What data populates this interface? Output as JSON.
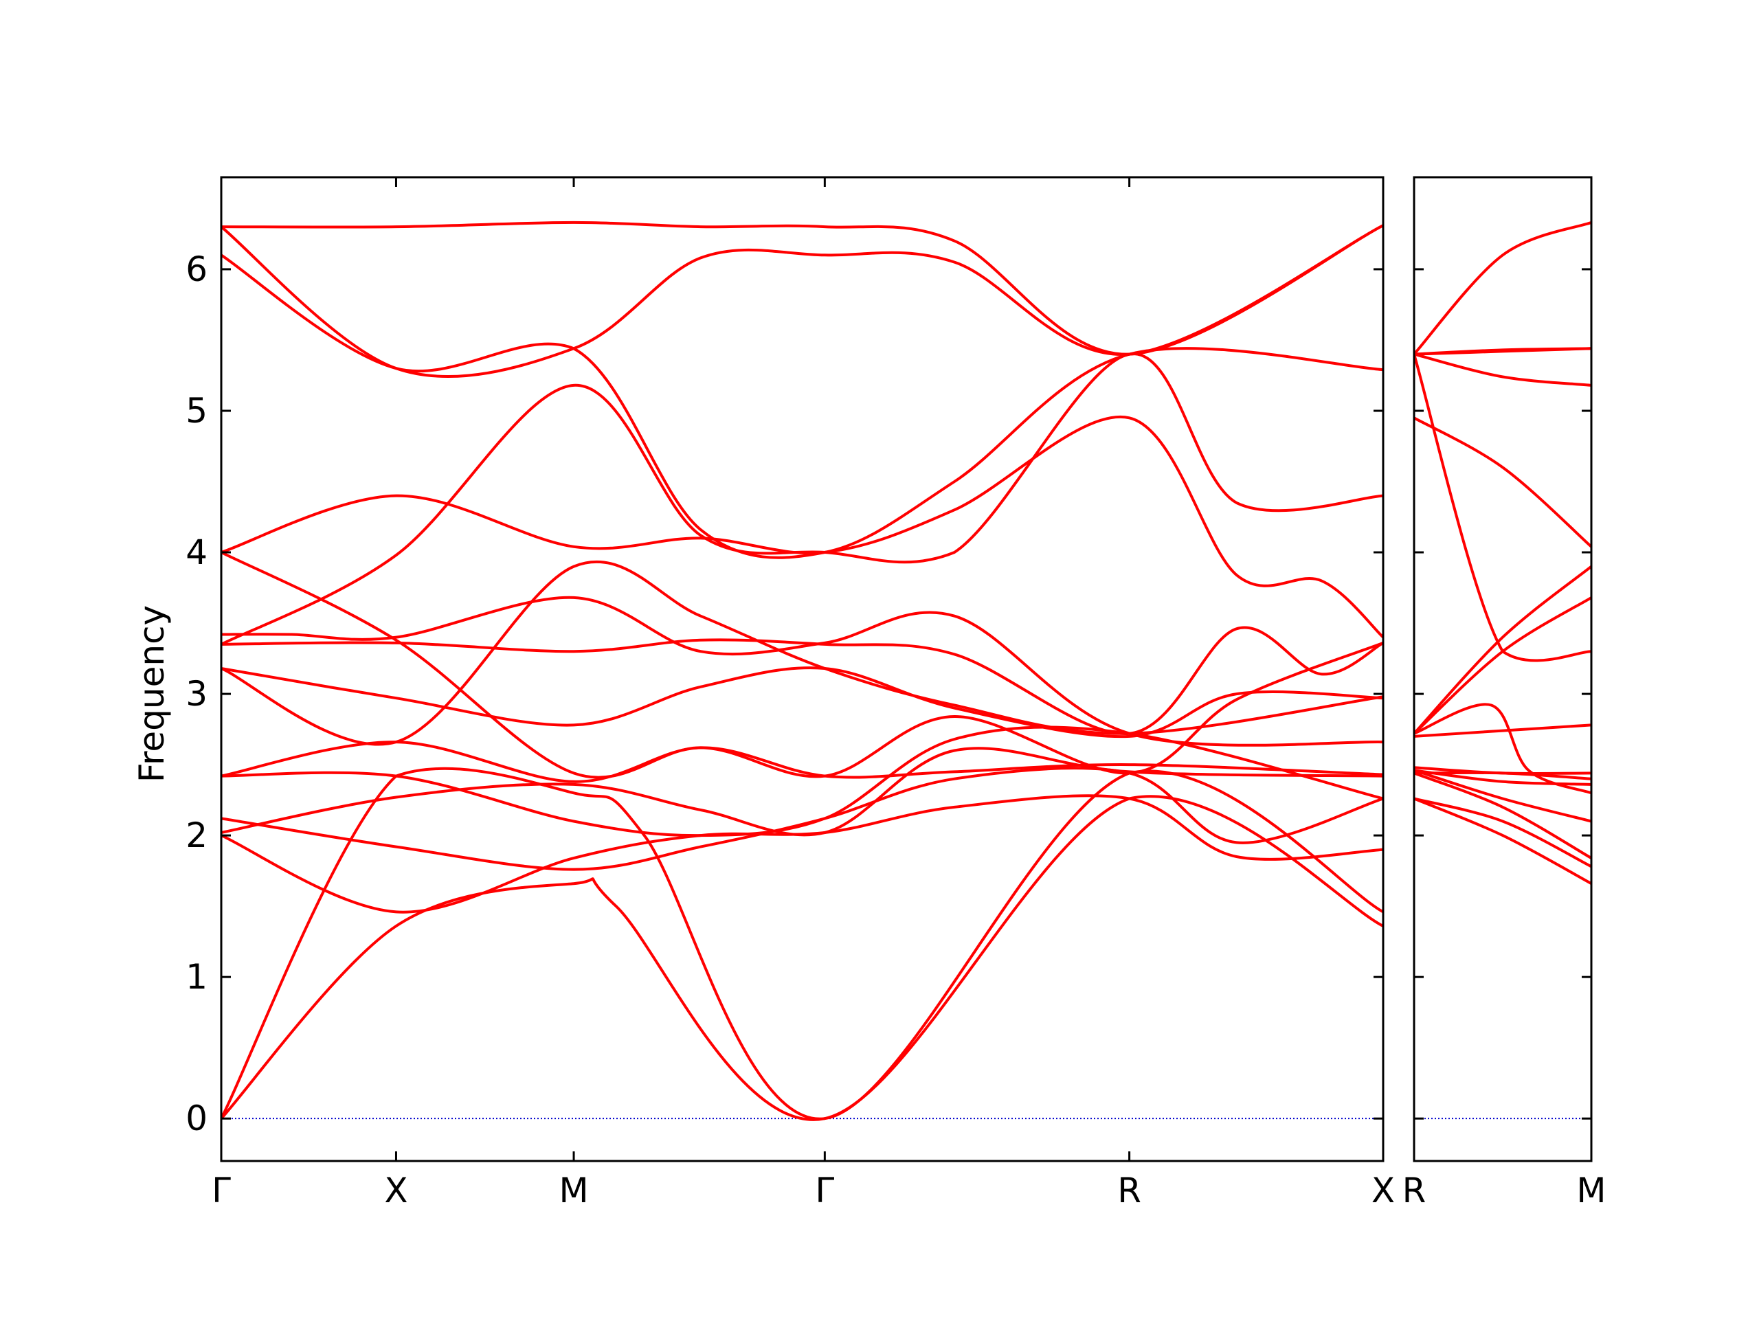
{
  "chart_data": {
    "type": "line",
    "title": "",
    "ylabel": "Frequency",
    "ylim": [
      -0.3,
      6.65
    ],
    "yticks": [
      0,
      1,
      2,
      3,
      4,
      5,
      6
    ],
    "grid": false,
    "colors": {
      "bands": "#ff0000",
      "zero_line": "#0000cc",
      "axes": "#000000"
    },
    "panels": [
      {
        "xlim": [
          0,
          4.12
        ],
        "xticks": [
          {
            "x": 0,
            "label": "Γ"
          },
          {
            "x": 0.62,
            "label": "X"
          },
          {
            "x": 1.25,
            "label": "M"
          },
          {
            "x": 2.14,
            "label": "Γ"
          },
          {
            "x": 3.22,
            "label": "R"
          },
          {
            "x": 4.12,
            "label": "X"
          }
        ],
        "bands": [
          {
            "x": [
              0,
              0.62,
              1.25,
              1.4,
              2.14,
              3.22,
              4.12
            ],
            "y": [
              0,
              1.36,
              1.66,
              1.5,
              0,
              2.26,
              1.36
            ]
          },
          {
            "x": [
              0,
              0.62,
              1.25,
              1.5,
              2.14,
              3.22,
              4.12
            ],
            "y": [
              0,
              2.42,
              2.3,
              2.0,
              0,
              2.44,
              1.46
            ]
          },
          {
            "x": [
              0,
              0.62,
              1.25,
              1.7,
              2.14,
              2.6,
              3.22,
              3.6,
              4.12
            ],
            "y": [
              2.0,
              1.46,
              1.84,
              2.0,
              2.02,
              2.2,
              2.26,
              1.85,
              1.9
            ]
          },
          {
            "x": [
              0,
              0.62,
              1.25,
              1.7,
              2.14,
              2.6,
              3.22,
              3.6,
              4.12
            ],
            "y": [
              2.12,
              1.92,
              1.76,
              1.92,
              2.12,
              2.4,
              2.44,
              1.95,
              2.26
            ]
          },
          {
            "x": [
              0,
              0.62,
              1.25,
              1.7,
              2.14,
              2.6,
              3.22,
              4.12
            ],
            "y": [
              2.42,
              2.42,
              2.1,
              2.0,
              2.12,
              2.68,
              2.72,
              2.26
            ]
          },
          {
            "x": [
              0,
              0.62,
              1.25,
              1.7,
              2.14,
              2.6,
              3.22,
              4.12
            ],
            "y": [
              2.02,
              2.27,
              2.36,
              2.18,
              2.02,
              2.6,
              2.45,
              2.42
            ]
          },
          {
            "x": [
              0,
              0.62,
              1.25,
              1.7,
              2.14,
              2.6,
              3.22,
              4.12
            ],
            "y": [
              2.42,
              2.66,
              2.38,
              2.62,
              2.42,
              2.45,
              2.5,
              2.43
            ]
          },
          {
            "x": [
              0,
              0.62,
              1.25,
              1.7,
              2.14,
              2.6,
              3.22,
              3.6,
              4.12
            ],
            "y": [
              3.18,
              2.97,
              2.78,
              3.05,
              3.18,
              2.9,
              2.7,
              3.0,
              2.97
            ]
          },
          {
            "x": [
              0,
              0.62,
              1.25,
              1.7,
              2.14,
              2.6,
              3.22,
              3.6,
              3.9,
              4.12
            ],
            "y": [
              3.35,
              3.36,
              3.3,
              3.38,
              3.35,
              3.28,
              2.72,
              3.46,
              3.14,
              3.36
            ]
          },
          {
            "x": [
              0,
              0.62,
              1.25,
              1.7,
              2.14,
              2.6,
              3.22,
              4.12
            ],
            "y": [
              3.18,
              2.66,
              3.9,
              3.55,
              3.18,
              2.92,
              2.72,
              2.98
            ]
          },
          {
            "x": [
              0,
              0.25,
              0.62,
              1.25,
              1.7,
              2.14,
              2.6,
              3.22,
              4.12
            ],
            "y": [
              3.42,
              3.42,
              3.4,
              3.68,
              3.3,
              3.36,
              3.55,
              2.72,
              2.66
            ]
          },
          {
            "x": [
              0,
              0.62,
              1.25,
              1.7,
              2.14,
              2.6,
              3.22,
              3.6,
              4.12
            ],
            "y": [
              4.0,
              3.38,
              2.44,
              2.62,
              2.42,
              2.84,
              2.44,
              2.96,
              3.36
            ]
          },
          {
            "x": [
              0,
              0.62,
              1.25,
              1.7,
              2.14,
              2.6,
              3.22,
              3.6,
              3.9,
              4.12
            ],
            "y": [
              4.0,
              4.4,
              4.04,
              4.1,
              4.0,
              4.3,
              4.95,
              3.84,
              3.8,
              3.4
            ]
          },
          {
            "x": [
              0,
              0.62,
              1.25,
              1.7,
              2.14,
              2.6,
              3.22,
              3.6,
              4.12
            ],
            "y": [
              3.35,
              3.98,
              5.18,
              4.12,
              4.0,
              4.0,
              5.4,
              4.35,
              4.4
            ]
          },
          {
            "x": [
              0,
              0.62,
              1.25,
              1.7,
              2.14,
              2.6,
              3.22,
              4.12
            ],
            "y": [
              6.1,
              5.3,
              5.44,
              4.16,
              4.0,
              4.5,
              5.4,
              5.29
            ]
          },
          {
            "x": [
              0,
              0.62,
              1.25,
              1.7,
              2.14,
              2.6,
              3.22,
              4.12
            ],
            "y": [
              6.3,
              5.3,
              5.44,
              6.08,
              6.1,
              6.05,
              5.4,
              6.31
            ]
          },
          {
            "x": [
              0,
              0.62,
              1.25,
              1.7,
              2.14,
              2.6,
              3.22,
              4.12
            ],
            "y": [
              6.3,
              6.3,
              6.33,
              6.3,
              6.3,
              6.2,
              5.4,
              6.31
            ]
          }
        ]
      },
      {
        "xlim": [
          0,
          0.62
        ],
        "xticks": [
          {
            "x": 0,
            "label": "R"
          },
          {
            "x": 0.62,
            "label": "M"
          }
        ],
        "bands": [
          {
            "x": [
              0,
              0.31,
              0.62
            ],
            "y": [
              2.26,
              2.0,
              1.66
            ]
          },
          {
            "x": [
              0,
              0.31,
              0.62
            ],
            "y": [
              2.26,
              2.1,
              1.78
            ]
          },
          {
            "x": [
              0,
              0.31,
              0.62
            ],
            "y": [
              2.44,
              2.2,
              1.84
            ]
          },
          {
            "x": [
              0,
              0.31,
              0.62
            ],
            "y": [
              2.46,
              2.26,
              2.1
            ]
          },
          {
            "x": [
              0,
              0.31,
              0.62
            ],
            "y": [
              2.46,
              2.38,
              2.36
            ]
          },
          {
            "x": [
              0,
              0.31,
              0.62
            ],
            "y": [
              2.48,
              2.44,
              2.44
            ]
          },
          {
            "x": [
              0,
              0.31,
              0.62
            ],
            "y": [
              2.44,
              2.44,
              2.4
            ]
          },
          {
            "x": [
              0,
              0.31,
              0.62
            ],
            "y": [
              2.7,
              2.74,
              2.78
            ]
          },
          {
            "x": [
              0,
              0.27,
              0.4,
              0.62
            ],
            "y": [
              2.72,
              2.92,
              2.46,
              2.3
            ]
          },
          {
            "x": [
              0,
              0.31,
              0.62
            ],
            "y": [
              2.72,
              3.3,
              3.68
            ]
          },
          {
            "x": [
              0,
              0.31,
              0.62
            ],
            "y": [
              2.72,
              3.4,
              3.9
            ]
          },
          {
            "x": [
              0,
              0.31,
              0.62
            ],
            "y": [
              4.95,
              4.6,
              4.04
            ]
          },
          {
            "x": [
              0,
              0.31,
              0.62
            ],
            "y": [
              5.4,
              3.3,
              3.3
            ]
          },
          {
            "x": [
              0,
              0.31,
              0.62
            ],
            "y": [
              5.4,
              5.24,
              5.18
            ]
          },
          {
            "x": [
              0,
              0.31,
              0.62
            ],
            "y": [
              5.4,
              5.43,
              5.44
            ]
          },
          {
            "x": [
              0,
              0.31,
              0.62
            ],
            "y": [
              5.4,
              5.42,
              5.44
            ]
          },
          {
            "x": [
              0,
              0.31,
              0.62
            ],
            "y": [
              5.4,
              6.1,
              6.33
            ]
          }
        ]
      }
    ]
  }
}
